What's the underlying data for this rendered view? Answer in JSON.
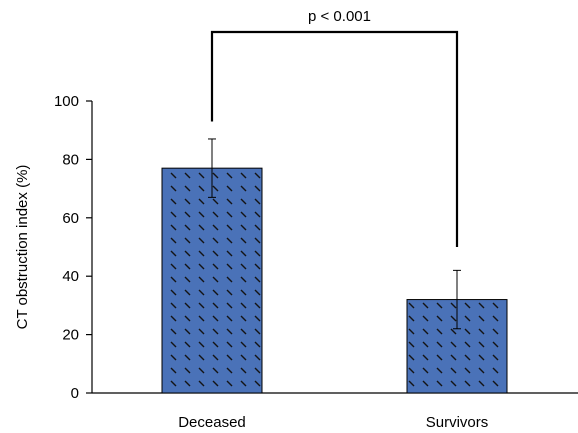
{
  "chart_data": {
    "type": "bar",
    "title": "",
    "xlabel": "",
    "ylabel": "CT obstruction index (%)",
    "ylim": [
      0,
      100
    ],
    "yticks": [
      0,
      20,
      40,
      60,
      80,
      100
    ],
    "grid": false,
    "categories": [
      "Deceased",
      "Survivors"
    ],
    "values": [
      77,
      32
    ],
    "error": [
      10,
      10
    ],
    "bar_color": "#4A72B8",
    "bar_pattern": "diagonal-dashes",
    "annotation": {
      "text": "p < 0.001",
      "between": [
        "Deceased",
        "Survivors"
      ],
      "left_y": 93,
      "right_y": 50
    }
  }
}
